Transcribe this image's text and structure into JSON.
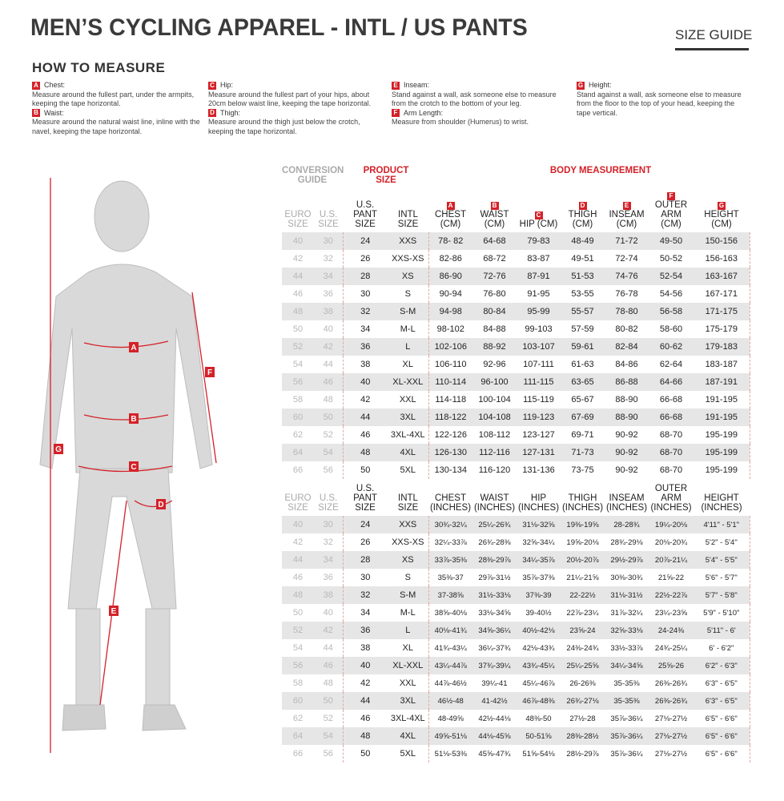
{
  "title": "MEN’S CYCLING APPAREL - INTL / US PANTS",
  "size_guide": "SIZE GUIDE",
  "how_to_measure": "HOW TO MEASURE",
  "accent": "#d42128",
  "instructions": [
    {
      "letter": "A",
      "title": "Chest:",
      "text": "Measure around the fullest part, under the armpits, keeping the tape horizontal."
    },
    {
      "letter": "B",
      "title": "Waist:",
      "text": "Measure around the natural waist line, inline with the navel, keeping the tape horizontal."
    },
    {
      "letter": "C",
      "title": "Hip:",
      "text": "Measure around the fullest part of your hips, about 20cm below waist line, keeping the tape horizontal."
    },
    {
      "letter": "D",
      "title": "Thigh:",
      "text": "Measure around the thigh just below the crotch, keeping the tape horizontal."
    },
    {
      "letter": "E",
      "title": "Inseam:",
      "text": "Stand against a wall, ask someone else to measure from the crotch to the bottom of your leg."
    },
    {
      "letter": "F",
      "title": "Arm Length:",
      "text": "Measure from shoulder (Humerus) to wrist."
    },
    {
      "letter": "G",
      "title": "Height:",
      "text": "Stand against a wall, ask someone else to measure from the floor to the top of your head, keeping the tape vertical."
    }
  ],
  "categories": {
    "conversion": "CONVERSION GUIDE",
    "product": "PRODUCT SIZE",
    "body": "BODY MEASUREMENT"
  },
  "cm_headers": [
    "EURO SIZE",
    "U.S. SIZE",
    "U.S. PANT SIZE",
    "INTL SIZE",
    "CHEST (CM)",
    "WAIST (CM)",
    "HIP (CM)",
    "THIGH (CM)",
    "INSEAM (CM)",
    "OUTER ARM (CM)",
    "HEIGHT (CM)"
  ],
  "inch_headers": [
    "EURO SIZE",
    "U.S. SIZE",
    "U.S. PANT SIZE",
    "INTL SIZE",
    "CHEST (INCHES)",
    "WAIST (INCHES)",
    "HIP (INCHES)",
    "THIGH (INCHES)",
    "INSEAM (INCHES)",
    "OUTER ARM (INCHES)",
    "HEIGHT (INCHES)"
  ],
  "column_letters": [
    "A",
    "B",
    "C",
    "D",
    "E",
    "F",
    "G"
  ],
  "cm_rows": [
    [
      "40",
      "30",
      "24",
      "XXS",
      "78- 82",
      "64-68",
      "79-83",
      "48-49",
      "71-72",
      "49-50",
      "150-156"
    ],
    [
      "42",
      "32",
      "26",
      "XXS-XS",
      "82-86",
      "68-72",
      "83-87",
      "49-51",
      "72-74",
      "50-52",
      "156-163"
    ],
    [
      "44",
      "34",
      "28",
      "XS",
      "86-90",
      "72-76",
      "87-91",
      "51-53",
      "74-76",
      "52-54",
      "163-167"
    ],
    [
      "46",
      "36",
      "30",
      "S",
      "90-94",
      "76-80",
      "91-95",
      "53-55",
      "76-78",
      "54-56",
      "167-171"
    ],
    [
      "48",
      "38",
      "32",
      "S-M",
      "94-98",
      "80-84",
      "95-99",
      "55-57",
      "78-80",
      "56-58",
      "171-175"
    ],
    [
      "50",
      "40",
      "34",
      "M-L",
      "98-102",
      "84-88",
      "99-103",
      "57-59",
      "80-82",
      "58-60",
      "175-179"
    ],
    [
      "52",
      "42",
      "36",
      "L",
      "102-106",
      "88-92",
      "103-107",
      "59-61",
      "82-84",
      "60-62",
      "179-183"
    ],
    [
      "54",
      "44",
      "38",
      "XL",
      "106-110",
      "92-96",
      "107-111",
      "61-63",
      "84-86",
      "62-64",
      "183-187"
    ],
    [
      "56",
      "46",
      "40",
      "XL-XXL",
      "110-114",
      "96-100",
      "111-115",
      "63-65",
      "86-88",
      "64-66",
      "187-191"
    ],
    [
      "58",
      "48",
      "42",
      "XXL",
      "114-118",
      "100-104",
      "115-119",
      "65-67",
      "88-90",
      "66-68",
      "191-195"
    ],
    [
      "60",
      "50",
      "44",
      "3XL",
      "118-122",
      "104-108",
      "119-123",
      "67-69",
      "88-90",
      "66-68",
      "191-195"
    ],
    [
      "62",
      "52",
      "46",
      "3XL-4XL",
      "122-126",
      "108-112",
      "123-127",
      "69-71",
      "90-92",
      "68-70",
      "195-199"
    ],
    [
      "64",
      "54",
      "48",
      "4XL",
      "126-130",
      "112-116",
      "127-131",
      "71-73",
      "90-92",
      "68-70",
      "195-199"
    ],
    [
      "66",
      "56",
      "50",
      "5XL",
      "130-134",
      "116-120",
      "131-136",
      "73-75",
      "90-92",
      "68-70",
      "195-199"
    ]
  ],
  "inch_rows": [
    [
      "40",
      "30",
      "24",
      "XXS",
      "30¾-32¼",
      "25¼-26¾",
      "31⅛-32⅝",
      "19⅜-19⅝",
      "28-28¾",
      "19¼-20⅛",
      "4'11\" - 5'1\""
    ],
    [
      "42",
      "32",
      "26",
      "XXS-XS",
      "32¼-33⅞",
      "26¾-28⅜",
      "32⅝-34¼",
      "19⅝-20⅛",
      "28¾-29⅛",
      "20⅛-20¾",
      "5'2\" - 5'4\""
    ],
    [
      "44",
      "34",
      "28",
      "XS",
      "33⅞-35⅜",
      "28⅜-29⅞",
      "34¼-35⅞",
      "20½-20⅞",
      "29½-29⅞",
      "20⅞-21¼",
      "5'4\" - 5'5\""
    ],
    [
      "46",
      "36",
      "30",
      "S",
      "35⅜-37",
      "29⅞-31½",
      "35⅞-37⅜",
      "21¼-21⅝",
      "30⅜-30¾",
      "21⅝-22",
      "5'6\" - 5'7\""
    ],
    [
      "48",
      "38",
      "32",
      "S-M",
      "37-38⅝",
      "31½-33⅛",
      "37⅜-39",
      "22-22½",
      "31⅛-31½",
      "22½-22⅞",
      "5'7\" - 5'8\""
    ],
    [
      "50",
      "40",
      "34",
      "M-L",
      "38⅝-40⅛",
      "33⅛-34⅝",
      "39-40½",
      "22⅞-23¼",
      "31⅞-32¼",
      "23¼-23⅝",
      "5'9\" - 5'10\""
    ],
    [
      "52",
      "42",
      "36",
      "L",
      "40⅛-41¾",
      "34⅝-36¼",
      "40½-42⅛",
      "23⅝-24",
      "32⅝-33⅛",
      "24-24⅜",
      "5'11\" - 6'"
    ],
    [
      "54",
      "44",
      "38",
      "XL",
      "41¾-43¼",
      "36¼-37¾",
      "42⅛-43¾",
      "24⅜-24¾",
      "33½-33⅞",
      "24¾-25¼",
      "6' - 6'2\""
    ],
    [
      "56",
      "46",
      "40",
      "XL-XXL",
      "43¼-44⅞",
      "37¾-39¼",
      "43¾-45¼",
      "25¼-25⅝",
      "34¼-34⅝",
      "25⅝-26",
      "6'2\" - 6'3\""
    ],
    [
      "58",
      "48",
      "42",
      "XXL",
      "44⅞-46½",
      "39¼-41",
      "45¼-46⅞",
      "26-26⅜",
      "35-35⅜",
      "26⅜-26¾",
      "6'3\" - 6'5\""
    ],
    [
      "60",
      "50",
      "44",
      "3XL",
      "46½-48",
      "41-42½",
      "46⅞-48⅜",
      "26¾-27⅛",
      "35-35⅜",
      "26⅜-26¾",
      "6'3\" - 6'5\""
    ],
    [
      "62",
      "52",
      "46",
      "3XL-4XL",
      "48-49⅝",
      "42½-44⅛",
      "48⅜-50",
      "27½-28",
      "35⅞-36¼",
      "27⅛-27½",
      "6'5\" - 6'6\""
    ],
    [
      "64",
      "54",
      "48",
      "4XL",
      "49⅝-51⅛",
      "44⅛-45⅝",
      "50-51⅝",
      "28⅜-28½",
      "35⅞-36¼",
      "27⅛-27½",
      "6'5\" - 6'6\""
    ],
    [
      "66",
      "56",
      "50",
      "5XL",
      "51⅛-53⅜",
      "45⅝-47¾",
      "51⅝-54⅛",
      "28½-29⅞",
      "35⅞-36¼",
      "27⅛-27½",
      "6'5\" - 6'6\""
    ]
  ]
}
